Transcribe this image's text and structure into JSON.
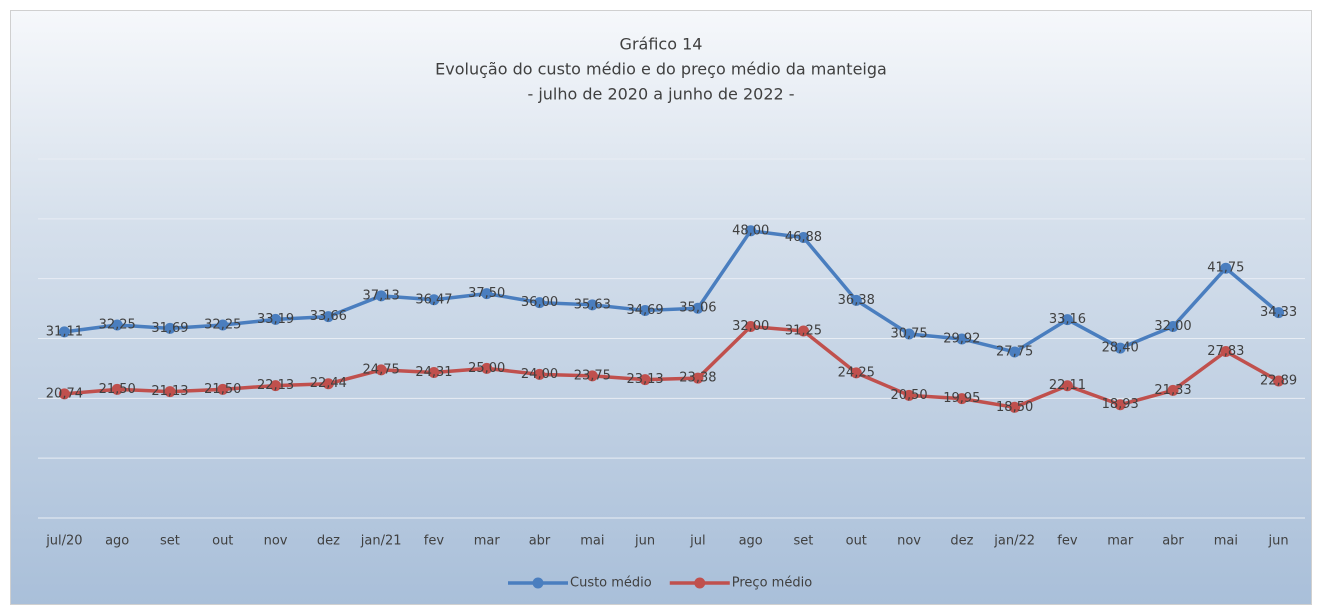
{
  "chart_data": {
    "type": "line",
    "title": "Gráfico 14",
    "subtitle": [
      "Evolução do custo médio e do preço médio da manteiga",
      "- julho de 2020 a junho de 2022 -"
    ],
    "categories": [
      "jul/20",
      "ago",
      "set",
      "out",
      "nov",
      "dez",
      "jan/21",
      "fev",
      "mar",
      "abr",
      "mai",
      "jun",
      "jul",
      "ago",
      "set",
      "out",
      "nov",
      "dez",
      "jan/22",
      "fev",
      "mar",
      "abr",
      "mai",
      "jun"
    ],
    "series": [
      {
        "name": "Custo médio",
        "color": "#4a7ebf",
        "values": [
          31.11,
          32.25,
          31.69,
          32.25,
          33.19,
          33.66,
          37.13,
          36.47,
          37.5,
          36.0,
          35.63,
          34.69,
          35.06,
          48.0,
          46.88,
          36.38,
          30.75,
          29.92,
          27.75,
          33.16,
          28.4,
          32.0,
          41.75,
          34.33
        ],
        "value_labels": [
          "31,11",
          "32,25",
          "31,69",
          "32,25",
          "33,19",
          "33,66",
          "37,13",
          "36,47",
          "37,50",
          "36,00",
          "35,63",
          "34,69",
          "35,06",
          "48,00",
          "46,88",
          "36,38",
          "30,75",
          "29,92",
          "27,75",
          "33,16",
          "28,40",
          "32,00",
          "41,75",
          "34,33"
        ]
      },
      {
        "name": "Preço médio",
        "color": "#c0504d",
        "values": [
          20.74,
          21.5,
          21.13,
          21.5,
          22.13,
          22.44,
          24.75,
          24.31,
          25.0,
          24.0,
          23.75,
          23.13,
          23.38,
          32.0,
          31.25,
          24.25,
          20.5,
          19.95,
          18.5,
          22.11,
          18.93,
          21.33,
          27.83,
          22.89
        ],
        "value_labels": [
          "20,74",
          "21,50",
          "21,13",
          "21,50",
          "22,13",
          "22,44",
          "24,75",
          "24,31",
          "25,00",
          "24,00",
          "23,75",
          "23,13",
          "23,38",
          "32,00",
          "31,25",
          "24,25",
          "20,50",
          "19,95",
          "18,50",
          "22,11",
          "18,93",
          "21,33",
          "27,83",
          "22,89"
        ]
      }
    ],
    "ylim": [
      0,
      60
    ],
    "yticks": [
      0,
      10,
      20,
      30,
      40,
      50,
      60
    ],
    "grid": true,
    "legend": "bottom"
  }
}
